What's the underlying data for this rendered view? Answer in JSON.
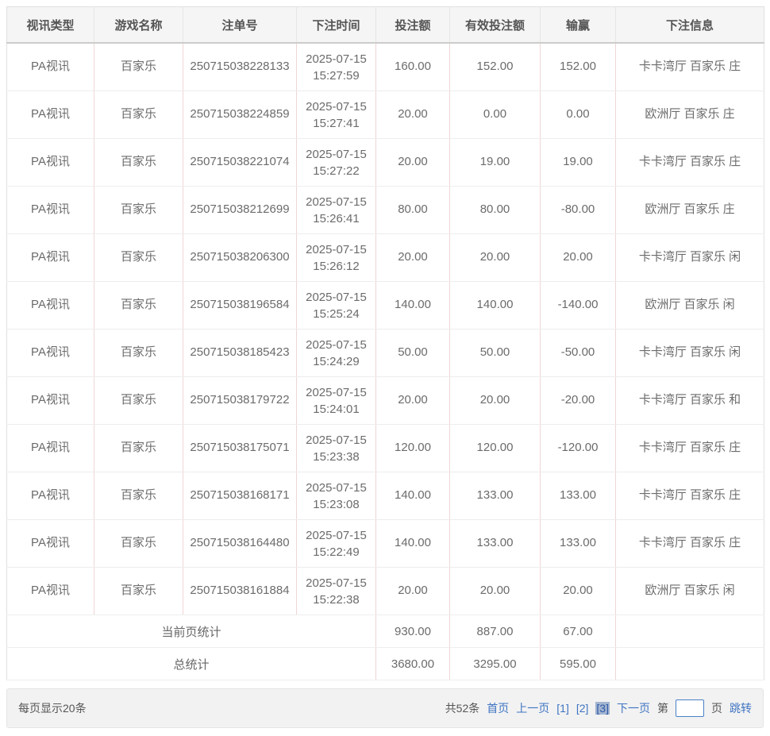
{
  "table": {
    "headers": [
      "视讯类型",
      "游戏名称",
      "注单号",
      "下注时间",
      "投注额",
      "有效投注额",
      "输赢",
      "下注信息"
    ],
    "rows": [
      {
        "video_type": "PA视讯",
        "game": "百家乐",
        "order_no": "250715038228133",
        "date": "2025-07-15",
        "time": "15:27:59",
        "bet": "160.00",
        "valid_bet": "152.00",
        "win_loss": "152.00",
        "info": "卡卡湾厅 百家乐 庄"
      },
      {
        "video_type": "PA视讯",
        "game": "百家乐",
        "order_no": "250715038224859",
        "date": "2025-07-15",
        "time": "15:27:41",
        "bet": "20.00",
        "valid_bet": "0.00",
        "win_loss": "0.00",
        "info": "欧洲厅 百家乐 庄"
      },
      {
        "video_type": "PA视讯",
        "game": "百家乐",
        "order_no": "250715038221074",
        "date": "2025-07-15",
        "time": "15:27:22",
        "bet": "20.00",
        "valid_bet": "19.00",
        "win_loss": "19.00",
        "info": "卡卡湾厅 百家乐 庄"
      },
      {
        "video_type": "PA视讯",
        "game": "百家乐",
        "order_no": "250715038212699",
        "date": "2025-07-15",
        "time": "15:26:41",
        "bet": "80.00",
        "valid_bet": "80.00",
        "win_loss": "-80.00",
        "info": "欧洲厅 百家乐 庄"
      },
      {
        "video_type": "PA视讯",
        "game": "百家乐",
        "order_no": "250715038206300",
        "date": "2025-07-15",
        "time": "15:26:12",
        "bet": "20.00",
        "valid_bet": "20.00",
        "win_loss": "20.00",
        "info": "卡卡湾厅 百家乐 闲"
      },
      {
        "video_type": "PA视讯",
        "game": "百家乐",
        "order_no": "250715038196584",
        "date": "2025-07-15",
        "time": "15:25:24",
        "bet": "140.00",
        "valid_bet": "140.00",
        "win_loss": "-140.00",
        "info": "欧洲厅 百家乐 闲"
      },
      {
        "video_type": "PA视讯",
        "game": "百家乐",
        "order_no": "250715038185423",
        "date": "2025-07-15",
        "time": "15:24:29",
        "bet": "50.00",
        "valid_bet": "50.00",
        "win_loss": "-50.00",
        "info": "卡卡湾厅 百家乐 闲"
      },
      {
        "video_type": "PA视讯",
        "game": "百家乐",
        "order_no": "250715038179722",
        "date": "2025-07-15",
        "time": "15:24:01",
        "bet": "20.00",
        "valid_bet": "20.00",
        "win_loss": "-20.00",
        "info": "卡卡湾厅 百家乐 和"
      },
      {
        "video_type": "PA视讯",
        "game": "百家乐",
        "order_no": "250715038175071",
        "date": "2025-07-15",
        "time": "15:23:38",
        "bet": "120.00",
        "valid_bet": "120.00",
        "win_loss": "-120.00",
        "info": "卡卡湾厅 百家乐 庄"
      },
      {
        "video_type": "PA视讯",
        "game": "百家乐",
        "order_no": "250715038168171",
        "date": "2025-07-15",
        "time": "15:23:08",
        "bet": "140.00",
        "valid_bet": "133.00",
        "win_loss": "133.00",
        "info": "卡卡湾厅 百家乐 庄"
      },
      {
        "video_type": "PA视讯",
        "game": "百家乐",
        "order_no": "250715038164480",
        "date": "2025-07-15",
        "time": "15:22:49",
        "bet": "140.00",
        "valid_bet": "133.00",
        "win_loss": "133.00",
        "info": "卡卡湾厅 百家乐 庄"
      },
      {
        "video_type": "PA视讯",
        "game": "百家乐",
        "order_no": "250715038161884",
        "date": "2025-07-15",
        "time": "15:22:38",
        "bet": "20.00",
        "valid_bet": "20.00",
        "win_loss": "20.00",
        "info": "欧洲厅 百家乐 闲"
      }
    ],
    "page_summary": {
      "label": "当前页统计",
      "bet": "930.00",
      "valid_bet": "887.00",
      "win_loss": "67.00",
      "info": ""
    },
    "total_summary": {
      "label": "总统计",
      "bet": "3680.00",
      "valid_bet": "3295.00",
      "win_loss": "595.00",
      "info": ""
    }
  },
  "pagination": {
    "per_page_label": "每页显示20条",
    "total_label": "共52条",
    "first_label": "首页",
    "prev_label": "上一页",
    "page_labels": [
      "[1]",
      "[2]",
      "[3]"
    ],
    "current_page": "3",
    "next_label": "下一页",
    "jump_before_label": "第",
    "jump_after_label": "页",
    "jump_button_label": "跳转",
    "jump_input_value": ""
  },
  "colors": {
    "link_blue": "#3f74c2",
    "current_page_bg": "#a2b4d0",
    "header_bg": "#f5f5f5",
    "cell_border_pink": "#f0d6d6",
    "footer_bg": "#f2f2f2"
  }
}
